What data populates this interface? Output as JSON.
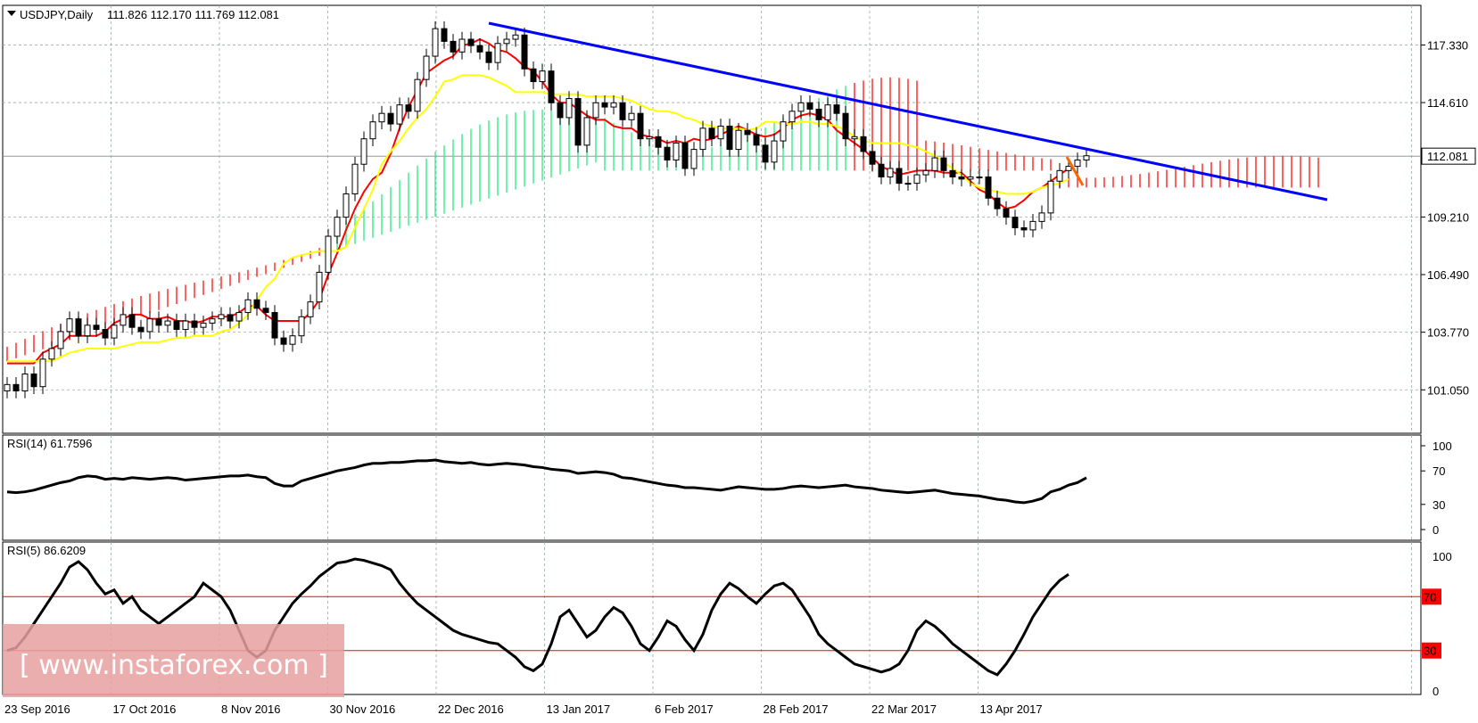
{
  "chart_data": [
    {
      "type": "candlestick",
      "header": {
        "symbol": "USDJPY,Daily",
        "ohlc": "111.826 112.170 111.769 112.081"
      },
      "price_scale": [
        "117.330",
        "114.610",
        "112.081",
        "109.210",
        "106.490",
        "103.770",
        "101.050"
      ],
      "current_price": "112.081",
      "x_labels": [
        "23 Sep 2016",
        "17 Oct 2016",
        "8 Nov 2016",
        "30 Nov 2016",
        "22 Dec 2016",
        "13 Jan 2017",
        "6 Feb 2017",
        "28 Feb 2017",
        "22 Mar 2017",
        "13 Apr 2017"
      ],
      "ylim": [
        99.0,
        119.2
      ],
      "series": [
        {
          "kind": "close",
          "values": [
            101.3,
            101.0,
            101.8,
            101.2,
            102.5,
            103.0,
            103.8,
            104.4,
            103.6,
            104.1,
            103.9,
            103.5,
            104.1,
            104.6,
            104.0,
            103.8,
            104.4,
            104.1,
            104.3,
            103.9,
            104.3,
            104.0,
            104.2,
            104.4,
            104.6,
            104.3,
            104.7,
            105.3,
            104.9,
            104.7,
            103.5,
            103.2,
            103.6,
            104.5,
            105.2,
            106.6,
            108.3,
            109.2,
            110.3,
            111.7,
            112.9,
            113.7,
            114.1,
            113.6,
            114.5,
            114.2,
            115.7,
            116.8,
            118.1,
            117.5,
            117.0,
            117.6,
            117.3,
            117.0,
            116.5,
            117.4,
            117.6,
            117.8,
            116.2,
            115.6,
            116.1,
            114.6,
            113.9,
            114.8,
            112.6,
            113.9,
            114.6,
            114.4,
            114.6,
            113.8,
            114.1,
            112.9,
            113.0,
            112.5,
            111.9,
            112.7,
            111.5,
            112.4,
            113.4,
            112.9,
            113.5,
            112.4,
            113.3,
            113.1,
            112.6,
            111.8,
            112.8,
            113.7,
            114.2,
            114.6,
            114.3,
            113.8,
            114.5,
            114.1,
            112.9,
            113.0,
            112.3,
            111.7,
            111.1,
            111.5,
            110.8,
            110.8,
            111.2,
            111.4,
            112.0,
            111.4,
            111.1,
            111.0,
            111.1,
            111.1,
            110.1,
            109.6,
            109.2,
            108.7,
            108.6,
            109.0,
            109.4,
            110.9,
            111.4,
            111.6,
            111.9,
            112.1
          ]
        },
        {
          "kind": "tenkan-sen",
          "color": "#ff0000",
          "values": [
            102.3,
            102.3,
            102.3,
            102.3,
            102.8,
            103.0,
            103.2,
            103.6,
            103.6,
            103.6,
            103.6,
            103.8,
            104.2,
            104.4,
            104.6,
            104.6,
            104.4,
            104.4,
            104.5,
            104.3,
            104.3,
            104.2,
            104.3,
            104.5,
            104.5,
            104.5,
            104.7,
            105.0,
            105.0,
            104.6,
            104.3,
            104.3,
            104.3,
            104.3,
            104.7,
            105.3,
            106.5,
            107.5,
            108.6,
            109.6,
            110.4,
            111.0,
            111.3,
            112.2,
            113.4,
            114.4,
            115.2,
            116.0,
            116.3,
            116.6,
            116.8,
            117.3,
            117.4,
            117.6,
            117.4,
            117.1,
            117.0,
            116.7,
            116.3,
            116.1,
            115.6,
            115.0,
            114.6,
            114.6,
            114.3,
            114.0,
            113.8,
            113.8,
            113.5,
            113.4,
            113.4,
            113.1,
            113.0,
            112.9,
            112.7,
            112.8,
            112.7,
            112.9,
            112.8,
            112.9,
            113.1,
            113.3,
            113.5,
            113.3,
            113.1,
            113.0,
            113.1,
            113.4,
            113.8,
            114.0,
            114.1,
            114.0,
            113.8,
            113.3,
            113.0,
            112.7,
            112.4,
            112.0,
            111.6,
            111.4,
            111.2,
            111.3,
            111.4,
            111.4,
            111.4,
            111.3,
            111.3,
            111.3,
            110.9,
            110.5,
            110.3,
            109.9,
            109.6,
            109.7,
            110.0,
            110.4,
            110.6,
            110.9,
            111.2,
            111.5
          ]
        },
        {
          "kind": "kijun-sen",
          "color": "#ffff00",
          "values": [
            102.4,
            102.4,
            102.4,
            102.4,
            102.4,
            102.4,
            102.6,
            102.8,
            102.9,
            103.0,
            103.0,
            103.0,
            103.0,
            103.1,
            103.2,
            103.3,
            103.3,
            103.3,
            103.4,
            103.5,
            103.5,
            103.6,
            103.6,
            103.6,
            103.8,
            103.9,
            104.2,
            104.6,
            105.3,
            105.9,
            106.3,
            107.0,
            107.3,
            107.4,
            107.5,
            107.6,
            107.6,
            107.6,
            107.8,
            108.7,
            109.6,
            110.5,
            111.7,
            112.3,
            112.8,
            113.4,
            113.9,
            114.3,
            114.9,
            115.6,
            115.7,
            115.9,
            115.9,
            115.9,
            115.8,
            115.6,
            115.4,
            115.1,
            115.1,
            115.1,
            115.1,
            115.0,
            115.0,
            115.0,
            115.0,
            114.9,
            114.9,
            114.9,
            114.9,
            114.8,
            114.7,
            114.5,
            114.3,
            114.2,
            114.2,
            114.1,
            113.9,
            113.8,
            113.6,
            113.5,
            113.4,
            113.4,
            113.4,
            113.3,
            113.4,
            113.7,
            113.7,
            113.6,
            113.6,
            113.7,
            113.7,
            113.6,
            113.6,
            113.5,
            113.3,
            113.0,
            112.8,
            112.7,
            112.7,
            112.7,
            112.7,
            112.6,
            112.5,
            112.3,
            112.1,
            111.8,
            111.5,
            111.2,
            110.8,
            110.6,
            110.5,
            110.4,
            110.3,
            110.3,
            110.3,
            110.4,
            110.6,
            110.7,
            110.8,
            111.0
          ]
        }
      ]
    },
    {
      "type": "line",
      "label": "RSI(14) 61.7596",
      "ylim": [
        0,
        100
      ],
      "levels": [
        "100",
        "70",
        "30",
        "0"
      ],
      "values": [
        45,
        44,
        45,
        47,
        50,
        53,
        56,
        58,
        62,
        64,
        63,
        60,
        61,
        60,
        62,
        61,
        60,
        61,
        62,
        61,
        59,
        60,
        61,
        62,
        63,
        64,
        64,
        65,
        63,
        62,
        55,
        52,
        52,
        58,
        61,
        64,
        67,
        70,
        72,
        74,
        77,
        79,
        79,
        80,
        80,
        81,
        82,
        82,
        83,
        81,
        80,
        79,
        80,
        78,
        77,
        78,
        79,
        78,
        77,
        75,
        74,
        72,
        71,
        70,
        67,
        68,
        69,
        68,
        66,
        62,
        61,
        59,
        57,
        55,
        53,
        52,
        50,
        50,
        49,
        48,
        47,
        49,
        51,
        50,
        49,
        48,
        48,
        49,
        51,
        52,
        51,
        50,
        51,
        52,
        53,
        51,
        50,
        49,
        47,
        46,
        45,
        44,
        45,
        46,
        47,
        45,
        43,
        42,
        41,
        40,
        38,
        36,
        35,
        33,
        32,
        34,
        37,
        45,
        48,
        53,
        56,
        61.8
      ]
    },
    {
      "type": "line",
      "label": "RSI(5) 86.6209",
      "ylim": [
        0,
        100
      ],
      "levels": [
        "100",
        "70",
        "30",
        "0"
      ],
      "ref_lines": [
        70,
        30
      ],
      "values": [
        30,
        32,
        40,
        50,
        60,
        70,
        80,
        92,
        96,
        90,
        80,
        72,
        75,
        65,
        70,
        60,
        55,
        50,
        55,
        60,
        65,
        70,
        80,
        75,
        70,
        60,
        45,
        30,
        25,
        30,
        45,
        55,
        65,
        72,
        78,
        85,
        90,
        95,
        96,
        98,
        97,
        95,
        93,
        90,
        80,
        72,
        65,
        60,
        55,
        50,
        45,
        42,
        40,
        38,
        36,
        35,
        30,
        25,
        18,
        15,
        20,
        35,
        55,
        60,
        50,
        40,
        45,
        55,
        62,
        58,
        48,
        35,
        30,
        40,
        52,
        48,
        38,
        30,
        42,
        60,
        72,
        80,
        76,
        70,
        65,
        72,
        78,
        80,
        75,
        65,
        55,
        42,
        35,
        30,
        25,
        20,
        18,
        16,
        14,
        16,
        20,
        30,
        45,
        52,
        48,
        42,
        35,
        30,
        25,
        20,
        15,
        12,
        20,
        30,
        42,
        55,
        65,
        75,
        82,
        86.6
      ]
    }
  ],
  "watermark": "[ www.instaforex.com ]"
}
